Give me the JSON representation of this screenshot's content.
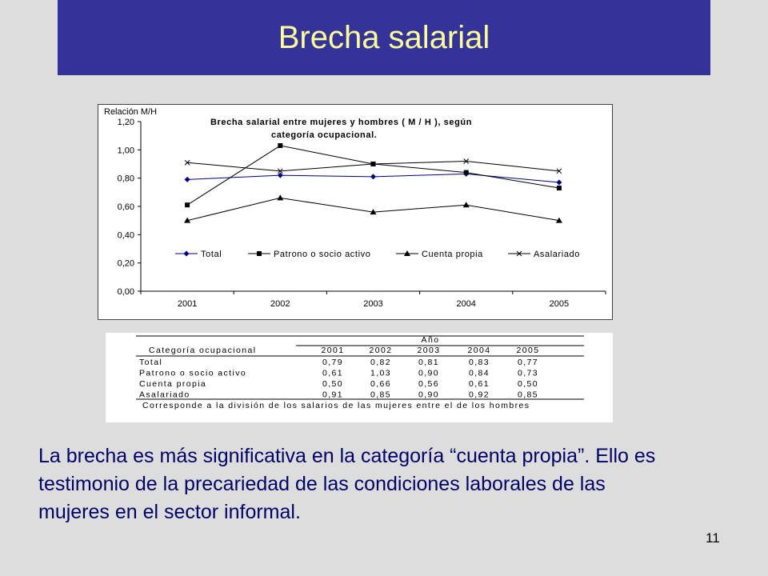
{
  "slide": {
    "title": "Brecha salarial",
    "body_text": "La brecha es más significativa en la categoría “cuenta propia”.  Ello es testimonio de la precariedad de las condiciones laborales de las mujeres en el sector informal.",
    "page_number": "11",
    "colors": {
      "title_bar": "#333399",
      "title_text": "#ffff99",
      "body_text": "#000066",
      "background": "#dddddd"
    }
  },
  "chart_data": [
    {
      "type": "line",
      "title": "Brecha salarial entre mujeres y hombres ( M / H ), según categoría ocupacional.",
      "title_lines": [
        "Brecha salarial entre mujeres y hombres ( M / H ), según",
        "categoría ocupacional."
      ],
      "ylabel": "Relación M/H",
      "xlabel": "",
      "categories": [
        "2001",
        "2002",
        "2003",
        "2004",
        "2005"
      ],
      "ylim": [
        0,
        1.2
      ],
      "yticks": [
        "0,00",
        "0,20",
        "0,40",
        "0,60",
        "0,80",
        "1,00",
        "1,20"
      ],
      "grid": false,
      "legend_position": "bottom-inside",
      "series": [
        {
          "name": "Total",
          "marker": "diamond",
          "color": "#000080",
          "values": [
            0.79,
            0.82,
            0.81,
            0.83,
            0.77
          ]
        },
        {
          "name": "Patrono o socio activo",
          "marker": "square",
          "color": "#000000",
          "values": [
            0.61,
            1.03,
            0.9,
            0.84,
            0.73
          ]
        },
        {
          "name": "Cuenta propia",
          "marker": "triangle",
          "color": "#000000",
          "values": [
            0.5,
            0.66,
            0.56,
            0.61,
            0.5
          ]
        },
        {
          "name": "Asalariado",
          "marker": "x",
          "color": "#000000",
          "values": [
            0.91,
            0.85,
            0.9,
            0.92,
            0.85
          ]
        }
      ]
    },
    {
      "type": "table",
      "header_group": "Año",
      "row_header": "Categoría ocupacional",
      "columns": [
        "2001",
        "2002",
        "2003",
        "2004",
        "2005"
      ],
      "rows": [
        {
          "label": "Total",
          "values": [
            "0,79",
            "0,82",
            "0,81",
            "0,83",
            "0,77"
          ]
        },
        {
          "label": "Patrono o socio activo",
          "values": [
            "0,61",
            "1,03",
            "0,90",
            "0,84",
            "0,73"
          ]
        },
        {
          "label": "Cuenta propia",
          "values": [
            "0,50",
            "0,66",
            "0,56",
            "0,61",
            "0,50"
          ]
        },
        {
          "label": "Asalariado",
          "values": [
            "0,91",
            "0,85",
            "0,90",
            "0,92",
            "0,85"
          ]
        }
      ],
      "footnote": "Corresponde a la división de los salarios de las mujeres entre el de los hombres"
    }
  ]
}
